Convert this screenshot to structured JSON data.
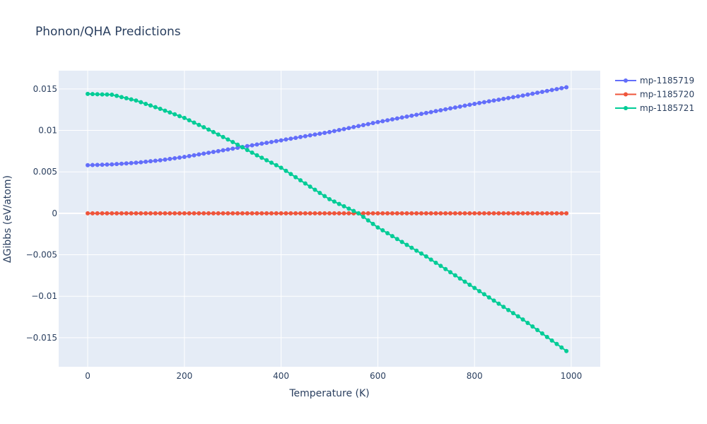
{
  "chart_data": {
    "type": "line",
    "title": "Phonon/QHA Predictions",
    "xlabel": "Temperature (K)",
    "ylabel": "ΔGibbs (eV/atom)",
    "xlim": [
      -60,
      1060
    ],
    "ylim": [
      -0.0185,
      0.0172
    ],
    "xticks": [
      0,
      200,
      400,
      600,
      800,
      1000
    ],
    "xtick_labels": [
      "0",
      "200",
      "400",
      "600",
      "800",
      "1000"
    ],
    "yticks": [
      -0.015,
      -0.01,
      -0.005,
      0,
      0.005,
      0.01,
      0.015
    ],
    "ytick_labels": [
      "−0.015",
      "−0.01",
      "−0.005",
      "0",
      "0.005",
      "0.01",
      "0.015"
    ],
    "grid": true,
    "legend_position": "top-right",
    "x_start": 0,
    "x_step": 10,
    "x_count": 100,
    "series": [
      {
        "name": "mp-1185719",
        "color": "#636efa",
        "keypoints": [
          [
            0,
            0.0058
          ],
          [
            50,
            0.0059
          ],
          [
            100,
            0.0061
          ],
          [
            150,
            0.0064
          ],
          [
            200,
            0.0068
          ],
          [
            250,
            0.0073
          ],
          [
            300,
            0.0078
          ],
          [
            350,
            0.0083
          ],
          [
            400,
            0.0088
          ],
          [
            500,
            0.0098
          ],
          [
            600,
            0.011
          ],
          [
            700,
            0.0121
          ],
          [
            800,
            0.0132
          ],
          [
            900,
            0.0142
          ],
          [
            990,
            0.0152
          ]
        ]
      },
      {
        "name": "mp-1185720",
        "color": "#ef553b",
        "keypoints": [
          [
            0,
            0.0
          ],
          [
            990,
            0.0
          ]
        ]
      },
      {
        "name": "mp-1185721",
        "color": "#00cc96",
        "keypoints": [
          [
            0,
            0.0144
          ],
          [
            50,
            0.0143
          ],
          [
            100,
            0.0136
          ],
          [
            150,
            0.0126
          ],
          [
            200,
            0.0115
          ],
          [
            250,
            0.0101
          ],
          [
            300,
            0.0086
          ],
          [
            350,
            0.007
          ],
          [
            400,
            0.0055
          ],
          [
            450,
            0.0036
          ],
          [
            500,
            0.0017
          ],
          [
            560,
            0.0
          ],
          [
            600,
            -0.0017
          ],
          [
            700,
            -0.0052
          ],
          [
            800,
            -0.009
          ],
          [
            900,
            -0.0128
          ],
          [
            990,
            -0.0166
          ]
        ]
      }
    ]
  }
}
